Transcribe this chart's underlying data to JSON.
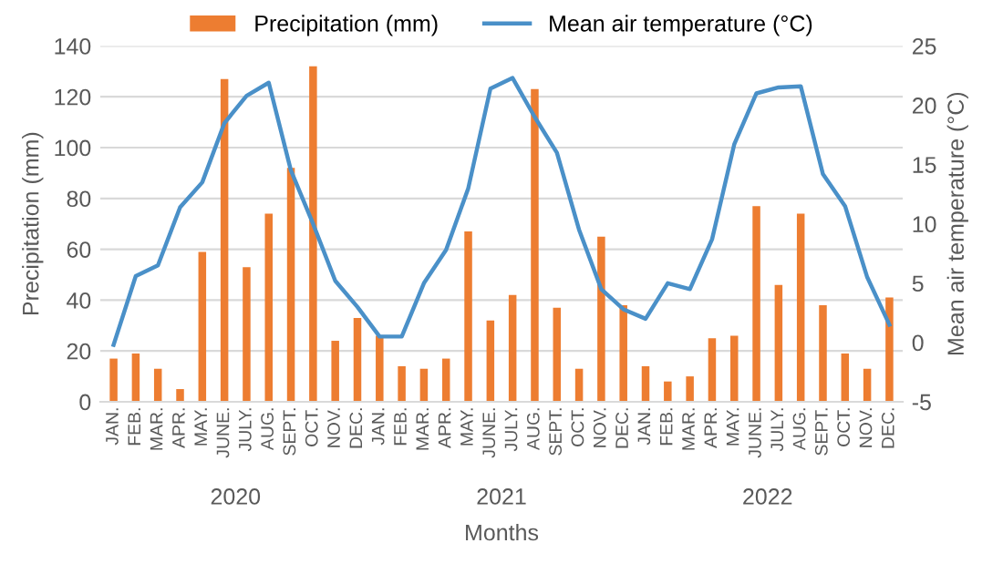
{
  "chart_data": {
    "type": "bar",
    "categories": [
      "JAN.",
      "FEB.",
      "MAR.",
      "APR.",
      "MAY.",
      "JUNE.",
      "JULY.",
      "AUG.",
      "SEPT.",
      "OCT.",
      "NOV.",
      "DEC.",
      "JAN.",
      "FEB.",
      "MAR.",
      "APR.",
      "MAY.",
      "JUNE.",
      "JULY.",
      "AUG.",
      "SEPT.",
      "OCT.",
      "NOV.",
      "DEC.",
      "JAN.",
      "FEB.",
      "MAR.",
      "APR.",
      "MAY.",
      "JUNE.",
      "JULY.",
      "AUG.",
      "SEPT.",
      "OCT.",
      "NOV.",
      "DEC."
    ],
    "series": [
      {
        "name": "Precipitation (mm)",
        "color": "#ed7d31",
        "values": [
          17,
          19,
          13,
          5,
          59,
          127,
          53,
          74,
          92,
          132,
          24,
          33,
          26,
          14,
          13,
          17,
          67,
          32,
          42,
          123,
          37,
          13,
          65,
          38,
          14,
          8,
          10,
          25,
          26,
          77,
          46,
          74,
          38,
          19,
          13,
          41
        ]
      },
      {
        "name": "Mean air temperature (°C)",
        "type": "line",
        "axis": "y2",
        "color": "#4a90c8",
        "values": [
          -0.2,
          5.6,
          6.5,
          11.4,
          13.5,
          18.5,
          20.8,
          21.9,
          14.5,
          10,
          5.2,
          3,
          0.5,
          0.5,
          5,
          7.8,
          13,
          21.4,
          22.3,
          19,
          16,
          9.5,
          4.5,
          2.8,
          2,
          5,
          4.5,
          8.7,
          16.7,
          21,
          21.5,
          21.6,
          14.2,
          11.5,
          5.5,
          1.5
        ]
      }
    ],
    "xlabel": "Months",
    "ylabel": "Precipitation (mm)",
    "y2label": "Mean air temperature (°C)",
    "annotations": [
      "2020",
      "2021",
      "2022"
    ],
    "ylim": [
      0,
      140
    ],
    "yticks": [
      0,
      20,
      40,
      60,
      80,
      100,
      120,
      140
    ],
    "y2lim": [
      -5,
      25
    ],
    "y2ticks": [
      -5,
      0,
      5,
      10,
      15,
      20,
      25
    ],
    "grid": "y",
    "legend": "top"
  }
}
